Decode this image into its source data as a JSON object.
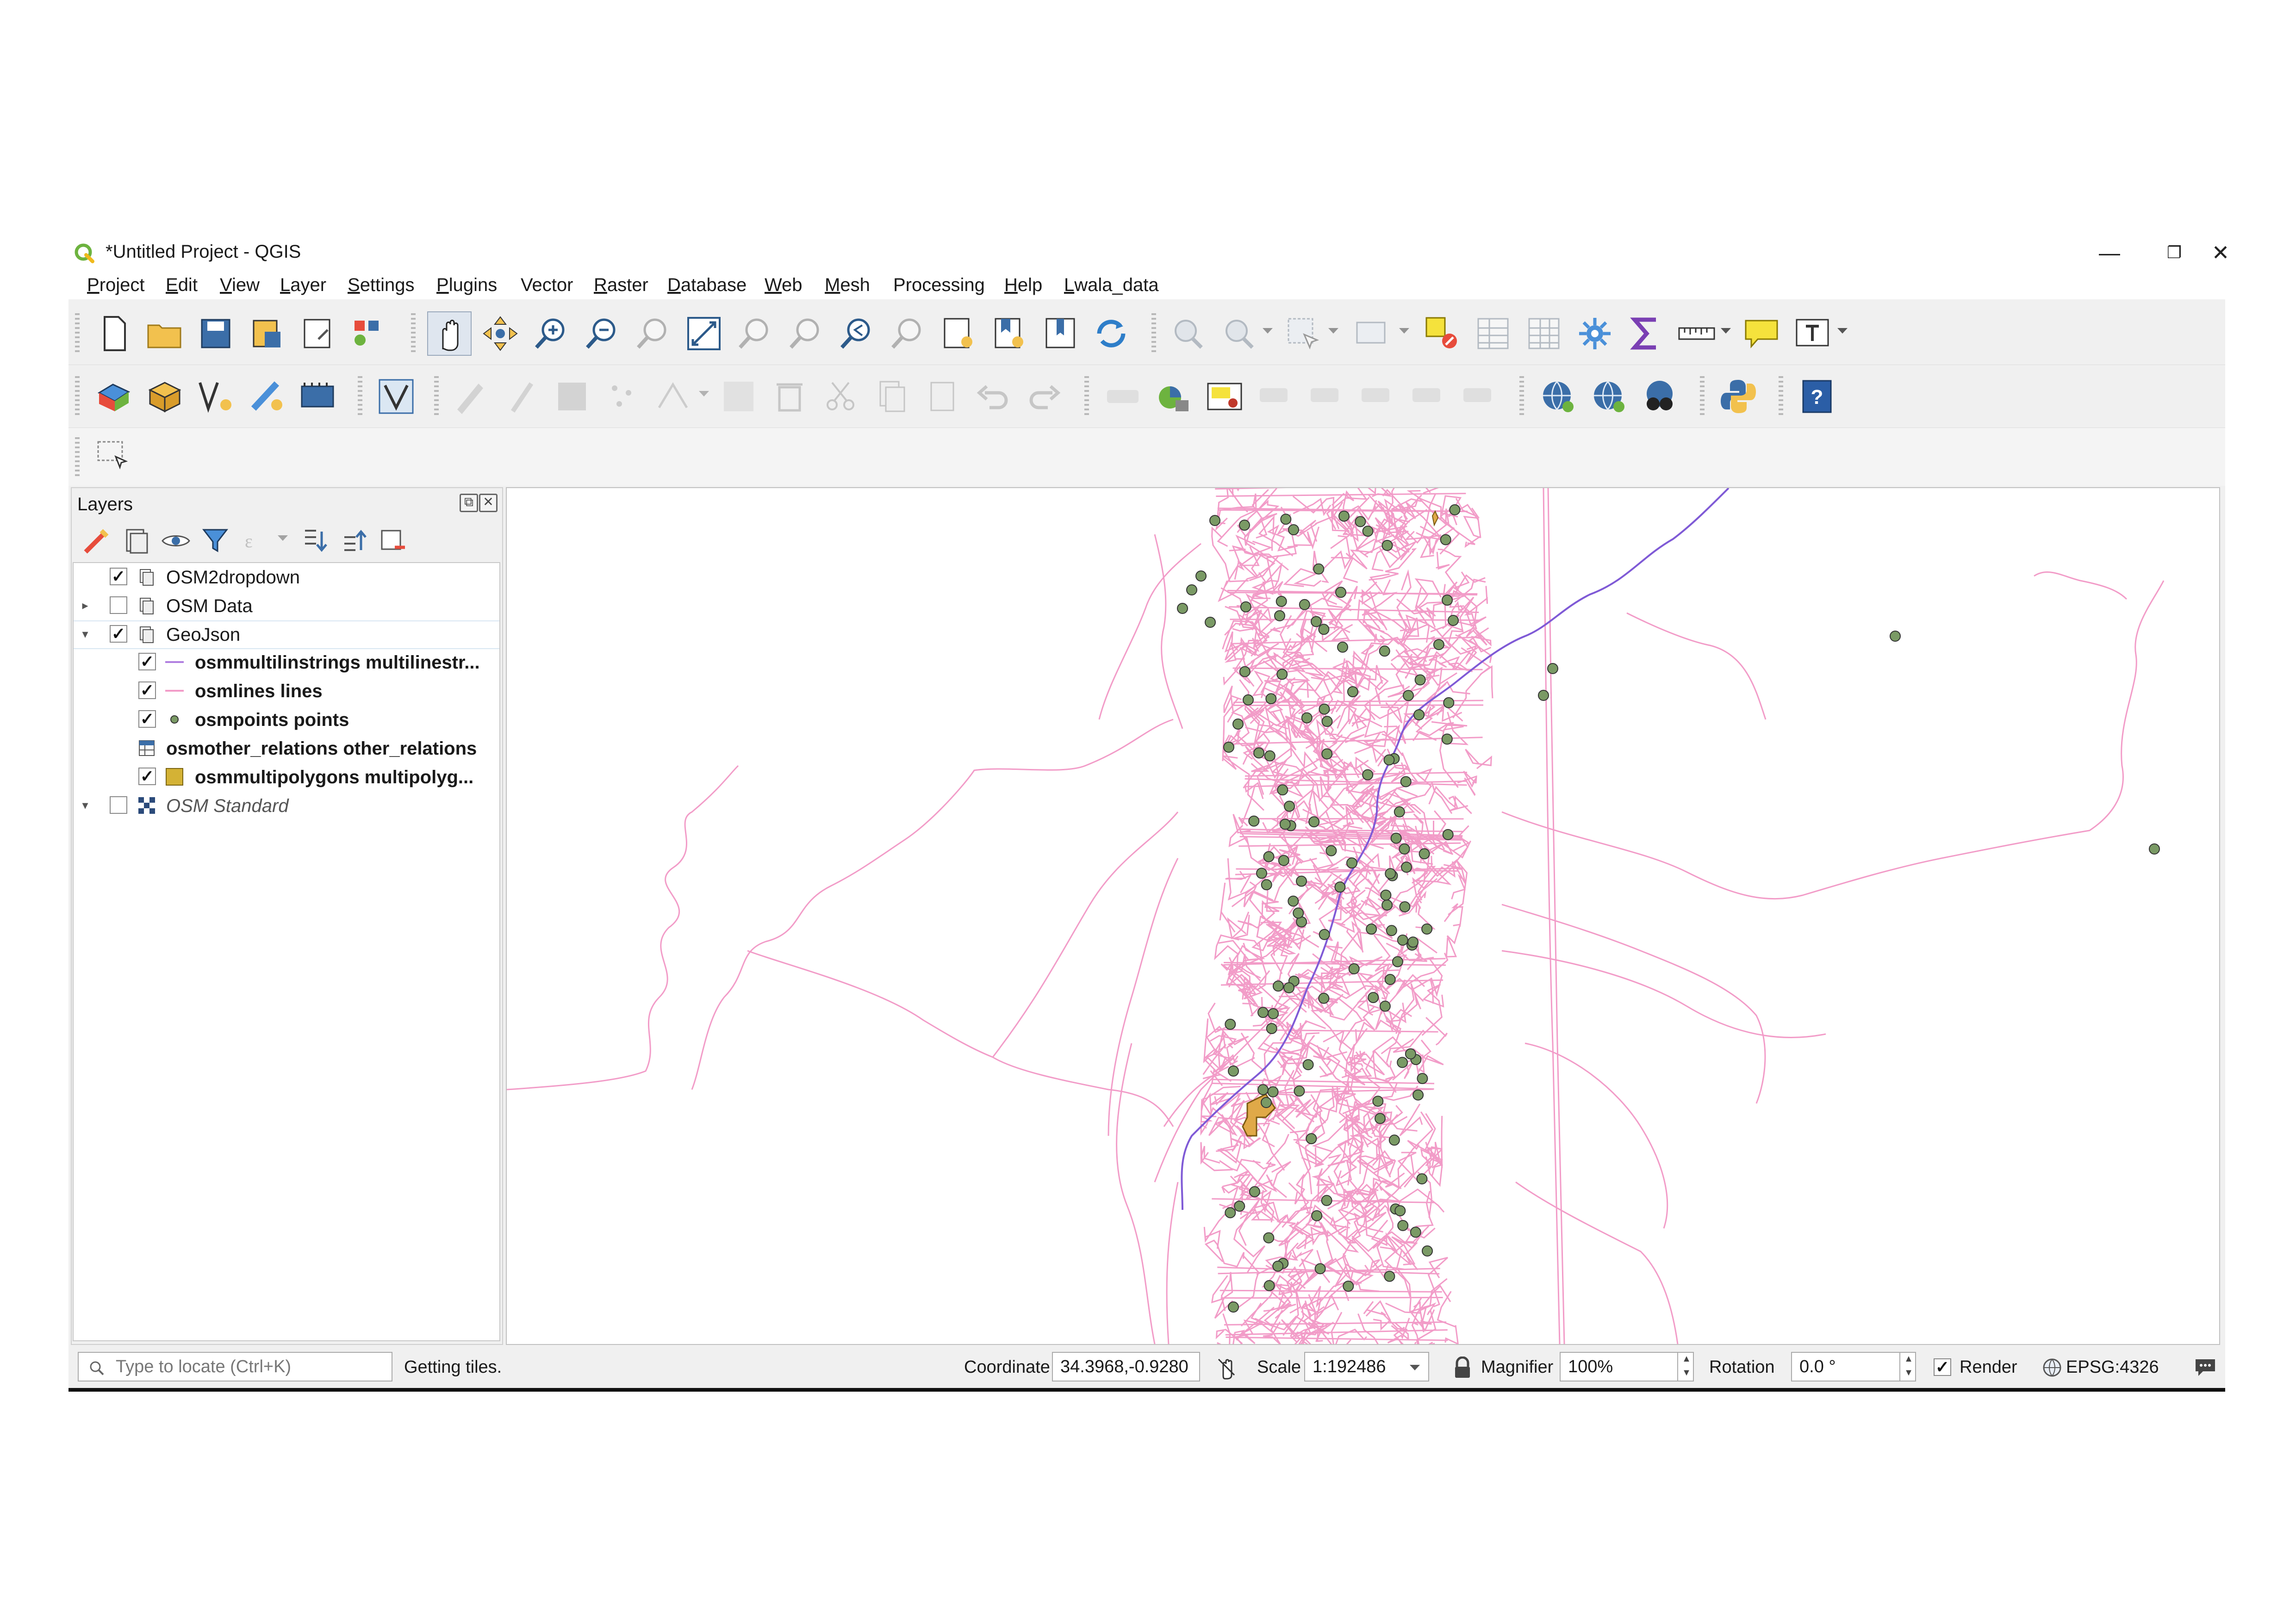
{
  "window": {
    "title": "*Untitled Project - QGIS",
    "buttons": {
      "minimize": "—",
      "restore": "❐",
      "close": "✕"
    }
  },
  "menu": [
    {
      "label": "Project",
      "accel": "P",
      "rest": "roject"
    },
    {
      "label": "Edit",
      "accel": "E",
      "rest": "dit"
    },
    {
      "label": "View",
      "accel": "V",
      "rest": "iew"
    },
    {
      "label": "Layer",
      "accel": "L",
      "rest": "ayer"
    },
    {
      "label": "Settings",
      "accel": "S",
      "rest": "ettings"
    },
    {
      "label": "Plugins",
      "accel": "P",
      "rest": "lugins"
    },
    {
      "label": "Vector",
      "accel": "",
      "rest": "Vector"
    },
    {
      "label": "Raster",
      "accel": "R",
      "rest": "aster"
    },
    {
      "label": "Database",
      "accel": "D",
      "rest": "atabase"
    },
    {
      "label": "Web",
      "accel": "W",
      "rest": "eb"
    },
    {
      "label": "Mesh",
      "accel": "M",
      "rest": "esh"
    },
    {
      "label": "Processing",
      "accel": "",
      "rest": "Processing"
    },
    {
      "label": "Help",
      "accel": "H",
      "rest": "elp"
    },
    {
      "label": "Lwala_data",
      "accel": "L",
      "rest": "wala_data"
    }
  ],
  "layers_panel": {
    "title": "Layers",
    "layers": [
      {
        "name": "OSM2dropdown",
        "checked": true,
        "expander": "",
        "icon": "group-icon",
        "style": "normal"
      },
      {
        "name": "OSM Data",
        "checked": false,
        "expander": "▸",
        "icon": "group-icon",
        "style": "normal"
      },
      {
        "name": "GeoJson",
        "checked": true,
        "expander": "▾",
        "icon": "group-icon",
        "style": "normal"
      },
      {
        "name": "osmmultilinstrings multilinestr...",
        "checked": true,
        "expander": "",
        "icon": "line-purple-icon",
        "style": "bold"
      },
      {
        "name": "osmlines lines",
        "checked": true,
        "expander": "",
        "icon": "line-pink-icon",
        "style": "bold"
      },
      {
        "name": "osmpoints points",
        "checked": true,
        "expander": "",
        "icon": "point-icon",
        "style": "bold"
      },
      {
        "name": "osmother_relations other_relations",
        "checked": null,
        "expander": "",
        "icon": "table-icon",
        "style": "bold"
      },
      {
        "name": "osmmultipolygons multipolyg...",
        "checked": true,
        "expander": "",
        "icon": "polygon-icon",
        "style": "bold"
      },
      {
        "name": "OSM Standard",
        "checked": false,
        "expander": "▾",
        "icon": "raster-icon",
        "style": "italic"
      }
    ]
  },
  "status": {
    "search_placeholder": "Type to locate (Ctrl+K)",
    "message": "Getting tiles.",
    "coordinate_label": "Coordinate",
    "coordinate_value": "34.3968,-0.9280",
    "scale_label": "Scale",
    "scale_value": "1:192486",
    "magnifier_label": "Magnifier",
    "magnifier_value": "100%",
    "rotation_label": "Rotation",
    "rotation_value": "0.0 °",
    "render_label": "Render",
    "render_checked": true,
    "crs": "EPSG:4326"
  },
  "colors": {
    "osmlines": "#f29cc8",
    "multilinestrings": "#7f5ad6",
    "points_fill": "#7a9a65",
    "points_stroke": "#3a3a3a",
    "multipolygon": "#e0a948",
    "qgis_green": "#6db33f"
  }
}
